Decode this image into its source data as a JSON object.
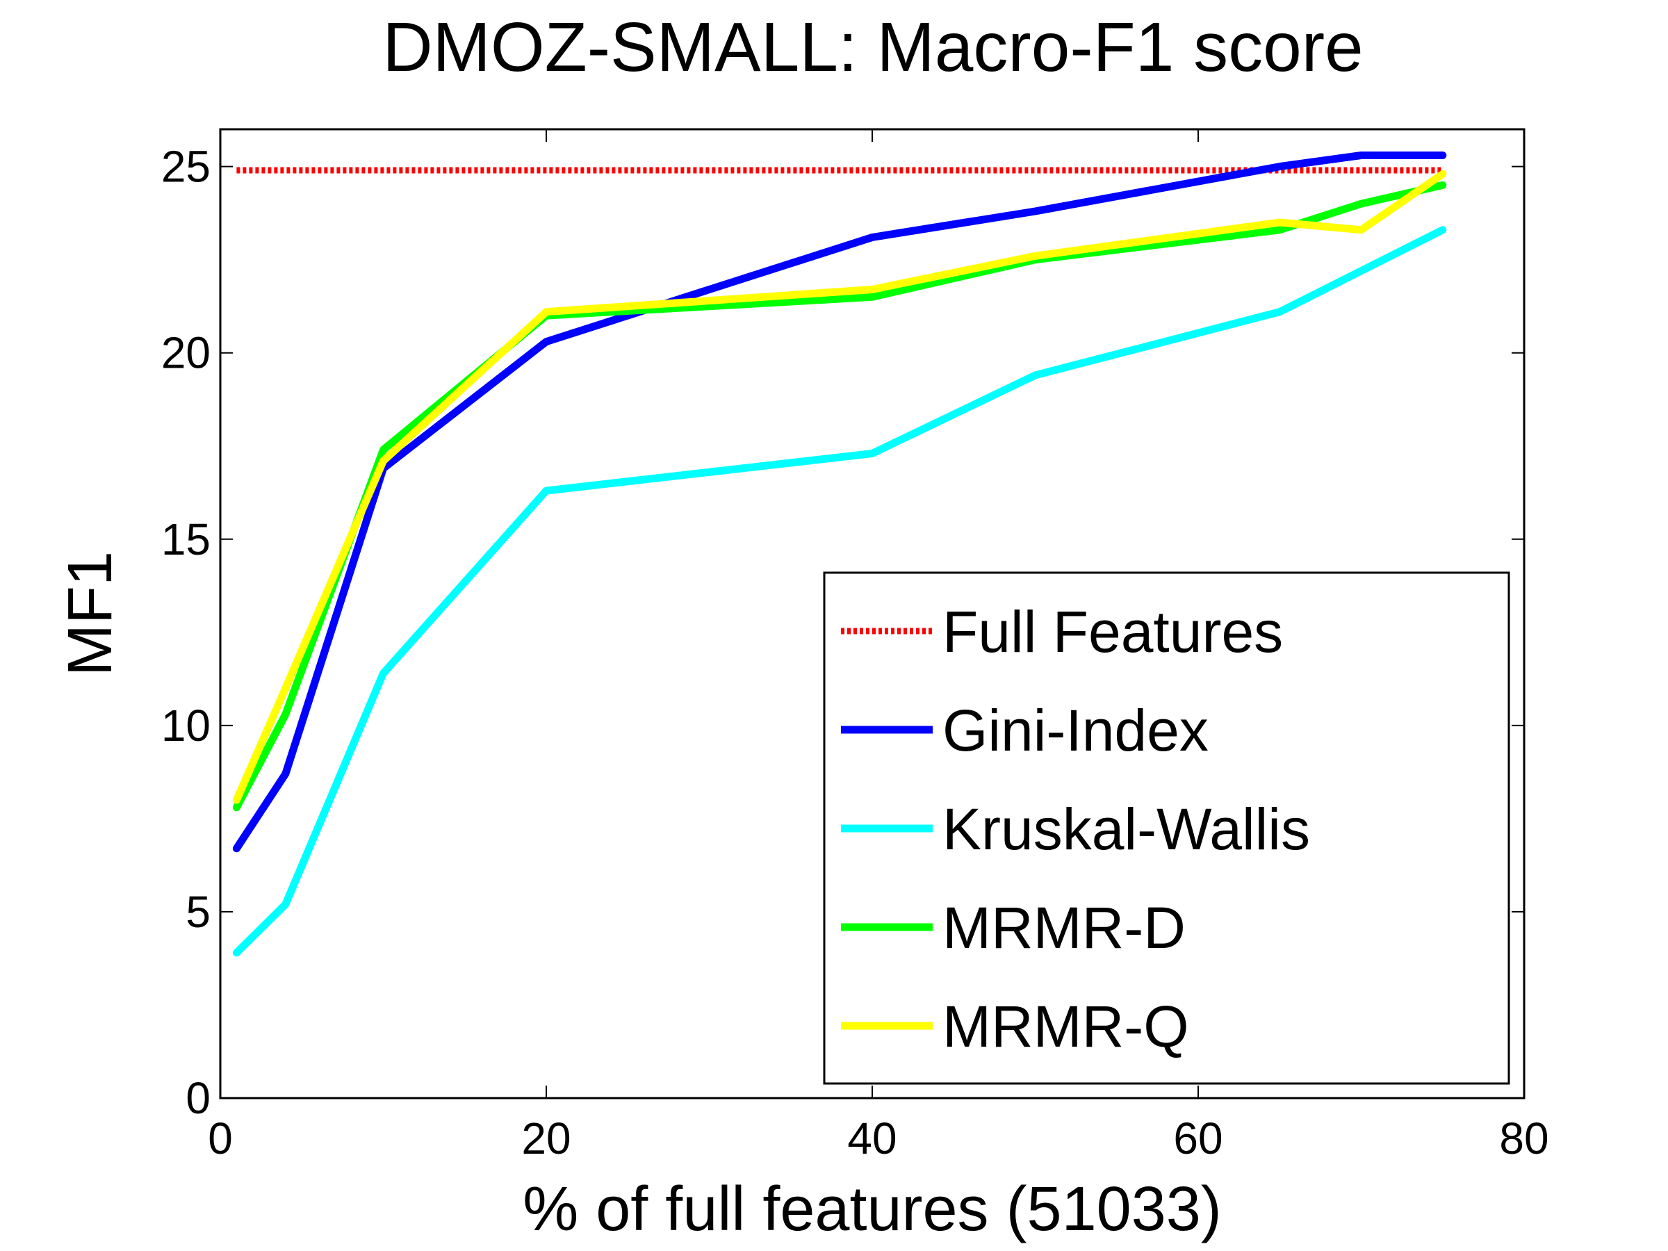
{
  "chart_data": {
    "type": "line",
    "title": "DMOZ-SMALL: Macro-F1 score",
    "xlabel": "% of full features (51033)",
    "ylabel": "MF1",
    "xlim": [
      0,
      80
    ],
    "ylim": [
      0,
      26
    ],
    "xticks": [
      0,
      20,
      40,
      60,
      80
    ],
    "yticks": [
      0,
      5,
      10,
      15,
      20,
      25
    ],
    "grid": false,
    "legend_position": "bottom-right",
    "series": [
      {
        "name": "Full Features",
        "color": "#ff0000",
        "style": "dotted",
        "points": [
          [
            1,
            24.9
          ],
          [
            75,
            24.9
          ]
        ]
      },
      {
        "name": "Gini-Index",
        "color": "#0000ff",
        "style": "solid",
        "points": [
          [
            1,
            6.7
          ],
          [
            4,
            8.7
          ],
          [
            10,
            16.9
          ],
          [
            20,
            20.3
          ],
          [
            40,
            23.1
          ],
          [
            50,
            23.8
          ],
          [
            65,
            25.0
          ],
          [
            70,
            25.3
          ],
          [
            75,
            25.3
          ]
        ]
      },
      {
        "name": "Kruskal-Wallis",
        "color": "#00ffff",
        "style": "solid",
        "points": [
          [
            1,
            3.9
          ],
          [
            4,
            5.2
          ],
          [
            10,
            11.4
          ],
          [
            20,
            16.3
          ],
          [
            40,
            17.3
          ],
          [
            50,
            19.4
          ],
          [
            65,
            21.1
          ],
          [
            75,
            23.3
          ]
        ]
      },
      {
        "name": "MRMR-D",
        "color": "#00ff00",
        "style": "solid",
        "points": [
          [
            1,
            7.8
          ],
          [
            4,
            10.3
          ],
          [
            10,
            17.4
          ],
          [
            20,
            21.0
          ],
          [
            40,
            21.5
          ],
          [
            50,
            22.5
          ],
          [
            65,
            23.3
          ],
          [
            70,
            24.0
          ],
          [
            75,
            24.5
          ]
        ]
      },
      {
        "name": "MRMR-Q",
        "color": "#ffff00",
        "style": "solid",
        "points": [
          [
            1,
            8.0
          ],
          [
            4,
            11.0
          ],
          [
            10,
            17.1
          ],
          [
            20,
            21.1
          ],
          [
            40,
            21.7
          ],
          [
            50,
            22.6
          ],
          [
            65,
            23.5
          ],
          [
            70,
            23.3
          ],
          [
            75,
            24.8
          ]
        ]
      }
    ]
  }
}
